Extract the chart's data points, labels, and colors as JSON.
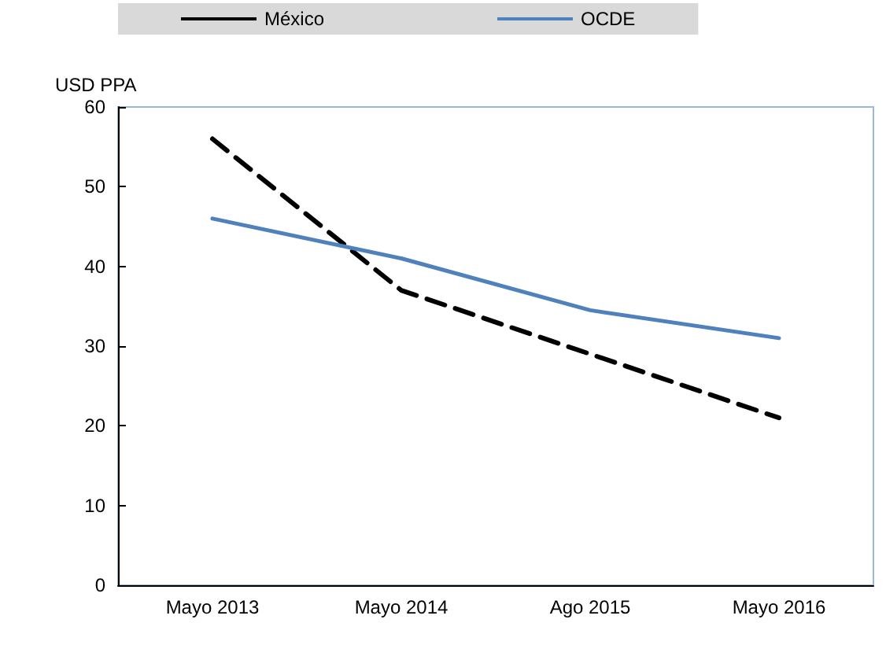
{
  "chart_data": {
    "type": "line",
    "ylabel": "USD PPA",
    "categories": [
      "Mayo 2013",
      "Mayo 2014",
      "Ago 2015",
      "Mayo 2016"
    ],
    "series": [
      {
        "name": "México",
        "color": "#000000",
        "line_style": "dashed",
        "values": [
          56,
          37,
          29,
          21
        ]
      },
      {
        "name": "OCDE",
        "color": "#4f81bd",
        "line_style": "solid",
        "values": [
          46,
          41,
          34.5,
          31
        ]
      }
    ],
    "ylim": [
      0,
      60
    ],
    "yticks": [
      0,
      10,
      20,
      30,
      40,
      50,
      60
    ],
    "grid": false,
    "legend": "top",
    "marker": "none"
  }
}
